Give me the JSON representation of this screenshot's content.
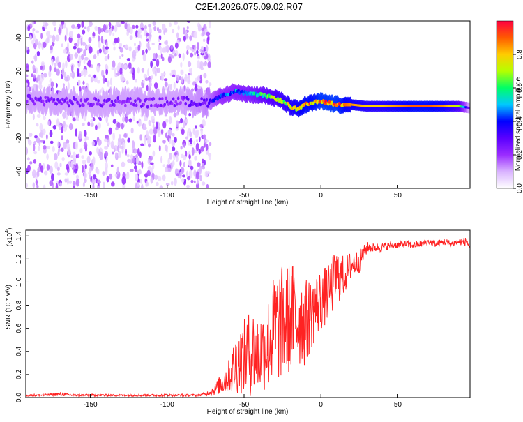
{
  "figure_title": "C2E4.2026.075.09.02.R07",
  "chart_data": [
    {
      "type": "heatmap",
      "title": "C2E4.2026.075.09.02.R07",
      "xlabel": "Height of straight line (km)",
      "ylabel": "Frequency (Hz)",
      "xlim": [
        -192,
        97
      ],
      "ylim": [
        -50,
        50
      ],
      "x_ticks": [
        -150,
        -100,
        -50,
        0,
        50
      ],
      "y_ticks": [
        -40,
        -20,
        0,
        20,
        40
      ],
      "grid": false,
      "colorbar": {
        "label": "Normalized spectral amplitude",
        "range": [
          0,
          1
        ],
        "ticks": [
          0.0,
          0.2,
          0.4,
          0.6,
          0.8
        ],
        "colors": [
          "#ffffff",
          "#d9b3ff",
          "#9a2cff",
          "#5a00ff",
          "#0000ff",
          "#00c8ff",
          "#00ff66",
          "#b4ff00",
          "#ffcc00",
          "#ff5a00",
          "#ff0040"
        ]
      },
      "ridge": {
        "x": [
          -192,
          -170,
          -150,
          -130,
          -110,
          -90,
          -75,
          -65,
          -55,
          -45,
          -40,
          -35,
          -30,
          -25,
          -20,
          -15,
          -10,
          -5,
          0,
          5,
          10,
          20,
          30,
          40,
          50,
          60,
          70,
          80,
          90,
          97
        ],
        "frequency": [
          3,
          2,
          1,
          2,
          1,
          2,
          1,
          5,
          8,
          6,
          6,
          5,
          4,
          2,
          -1,
          -3,
          0,
          1,
          2,
          1,
          0,
          0,
          -1,
          -1,
          -1,
          -1,
          -1,
          -1,
          -1,
          -2
        ],
        "amplitude": [
          0.25,
          0.25,
          0.25,
          0.25,
          0.25,
          0.25,
          0.3,
          0.45,
          0.5,
          0.55,
          0.6,
          0.65,
          0.7,
          0.75,
          0.8,
          0.85,
          0.9,
          0.9,
          0.95,
          0.95,
          0.95,
          0.85,
          0.8,
          0.8,
          0.85,
          0.9,
          0.9,
          0.85,
          0.7,
          0.2
        ]
      }
    },
    {
      "type": "line",
      "xlabel": "Height of straight line (km)",
      "ylabel": "SNR (10 * v/v)",
      "y_multiplier_label": "(x10",
      "y_multiplier_exp": "4",
      "y_multiplier_close": ")",
      "xlim": [
        -192,
        97
      ],
      "ylim": [
        0,
        1.45
      ],
      "x_ticks": [
        -150,
        -100,
        -50,
        0,
        50
      ],
      "y_ticks": [
        0.0,
        0.2,
        0.4,
        0.6,
        0.8,
        1.0,
        1.2,
        1.4
      ],
      "color": "#ff2222",
      "grid": false,
      "series": [
        {
          "x": [
            -192,
            -180,
            -170,
            -160,
            -150,
            -140,
            -130,
            -120,
            -110,
            -100,
            -90,
            -80,
            -75,
            -70,
            -65,
            -60,
            -55,
            -50,
            -45,
            -40,
            -35,
            -30,
            -25,
            -20,
            -15,
            -10,
            -5,
            0,
            5,
            10,
            15,
            20,
            25,
            30,
            35,
            40,
            45,
            50,
            55,
            60,
            65,
            70,
            75,
            80,
            85,
            90,
            95,
            97
          ],
          "y": [
            0.02,
            0.02,
            0.03,
            0.02,
            0.02,
            0.02,
            0.02,
            0.02,
            0.02,
            0.02,
            0.02,
            0.02,
            0.03,
            0.06,
            0.12,
            0.18,
            0.3,
            0.35,
            0.4,
            0.38,
            0.45,
            0.6,
            0.65,
            0.7,
            0.68,
            0.65,
            0.75,
            0.85,
            0.9,
            1.05,
            1.05,
            1.15,
            1.18,
            1.3,
            1.3,
            1.3,
            1.32,
            1.32,
            1.33,
            1.32,
            1.33,
            1.35,
            1.33,
            1.35,
            1.33,
            1.35,
            1.35,
            1.3
          ],
          "peak_to_peak": [
            0.02,
            0.02,
            0.03,
            0.02,
            0.02,
            0.02,
            0.02,
            0.02,
            0.02,
            0.02,
            0.02,
            0.02,
            0.03,
            0.08,
            0.18,
            0.3,
            0.55,
            0.65,
            0.8,
            0.7,
            0.8,
            1.0,
            1.0,
            1.0,
            0.9,
            0.75,
            0.6,
            0.55,
            0.5,
            0.5,
            0.35,
            0.25,
            0.2,
            0.1,
            0.08,
            0.08,
            0.06,
            0.06,
            0.06,
            0.06,
            0.06,
            0.06,
            0.06,
            0.06,
            0.06,
            0.06,
            0.08,
            0.08
          ]
        }
      ]
    }
  ]
}
